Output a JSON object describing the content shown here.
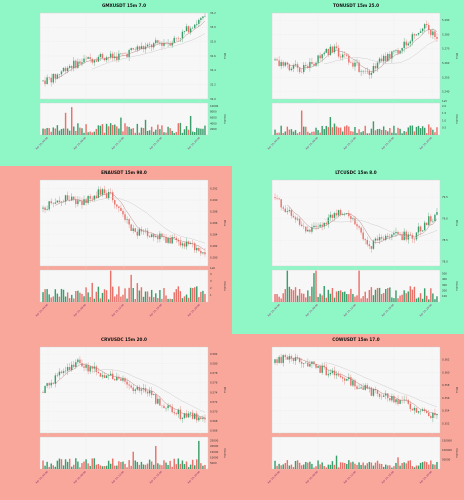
{
  "theme": {
    "green_bg": "#8ff7c6",
    "red_bg": "#f8a79a",
    "up_color": "#3a9e6b",
    "down_color": "#e8716a",
    "ma_fast_color": "#b07a7a",
    "ma_slow_color": "#c8c8c8",
    "plot_bg": "#f7f7f7"
  },
  "labels": {
    "price_axis": "Price",
    "volume_axis": "Volume"
  },
  "chart_data": [
    {
      "type": "candlestick",
      "title": "GMXUSDT 15m 7.0",
      "background": "green",
      "ylabel": "Price",
      "volume_label": "Volume",
      "ylim": [
        32.0,
        33.2
      ],
      "price_ticks": [
        "32.0",
        "32.2",
        "32.4",
        "32.6",
        "32.8",
        "33.0",
        "33.2"
      ],
      "x_ticks": [
        "Apr 10, 04:00",
        "Apr 10, 08:00",
        "Apr 10, 12:00",
        "Apr 10, 16:00",
        "Apr 10, 20:00"
      ],
      "vol_ticks": [
        "2000",
        "4000",
        "6000",
        "8000",
        "10000"
      ],
      "vol_max": 11000,
      "trend": [
        32.25,
        32.3,
        32.45,
        32.5,
        32.55,
        32.6,
        32.58,
        32.62,
        32.7,
        32.72,
        32.78,
        32.8,
        32.9,
        33.05,
        33.12
      ],
      "vol_base": 2200,
      "seed": 7
    },
    {
      "type": "candlestick",
      "title": "TONUSDT 15m 25.0",
      "background": "green",
      "ylabel": "Price",
      "volume_label": "Volume",
      "ylim": [
        5.235,
        5.295
      ],
      "price_ticks": [
        "5.240",
        "5.250",
        "5.260",
        "5.270",
        "5.280",
        "5.290"
      ],
      "x_ticks": [
        "Apr 10, 04:00",
        "Apr 10, 08:00",
        "Apr 10, 12:00",
        "Apr 10, 16:00",
        "Apr 10, 20:00"
      ],
      "vol_ticks": [
        "0.5",
        "1.0",
        "1.5",
        "2.0"
      ],
      "vol_max": 2.2,
      "vol_multiplier": "1e5",
      "trend": [
        5.262,
        5.258,
        5.256,
        5.258,
        5.266,
        5.27,
        5.264,
        5.258,
        5.252,
        5.262,
        5.266,
        5.272,
        5.278,
        5.285,
        5.276
      ],
      "vol_base": 0.35,
      "seed": 25
    },
    {
      "type": "candlestick",
      "title": "ENAUSDT 15m 98.0",
      "background": "red",
      "ylabel": "Price",
      "volume_label": "Volume",
      "ylim": [
        0.2785,
        0.2935
      ],
      "price_ticks": [
        "0.280",
        "0.282",
        "0.284",
        "0.286",
        "0.288",
        "0.290",
        "0.292"
      ],
      "x_ticks": [
        "Apr 10, 04:00",
        "Apr 10, 08:00",
        "Apr 10, 12:00",
        "Apr 10, 16:00",
        "Apr 10, 20:00"
      ],
      "vol_ticks": [
        "1",
        "2",
        "3",
        "4"
      ],
      "vol_max": 4.6,
      "vol_multiplier": "1e6",
      "trend": [
        0.2885,
        0.2895,
        0.2905,
        0.2895,
        0.2905,
        0.2915,
        0.2905,
        0.2865,
        0.2845,
        0.2842,
        0.2838,
        0.283,
        0.2823,
        0.2818,
        0.281
      ],
      "vol_base": 1.2,
      "seed": 98
    },
    {
      "type": "candlestick",
      "title": "LTCUSDC 15m 8.0",
      "background": "green",
      "ylabel": "Price",
      "volume_label": "Volume",
      "ylim": [
        77.9,
        79.9
      ],
      "price_ticks": [
        "78.0",
        "78.5",
        "79.0",
        "79.5"
      ],
      "x_ticks": [
        "Apr 10, 04:00",
        "Apr 10, 08:00",
        "Apr 10, 12:00",
        "Apr 10, 16:00",
        "Apr 10, 20:00"
      ],
      "vol_ticks": [
        "100",
        "200",
        "300",
        "400",
        "500"
      ],
      "vol_max": 560,
      "trend": [
        79.5,
        79.2,
        78.9,
        78.7,
        78.8,
        79.1,
        79.2,
        78.9,
        78.3,
        78.5,
        78.6,
        78.6,
        78.6,
        78.9,
        79.1
      ],
      "vol_base": 150,
      "seed": 8
    },
    {
      "type": "candlestick",
      "title": "CRVUSDC 15m 20.0",
      "background": "red",
      "ylabel": "Price",
      "volume_label": "Volume",
      "ylim": [
        0.5655,
        0.5835
      ],
      "price_ticks": [
        "0.566",
        "0.568",
        "0.570",
        "0.572",
        "0.574",
        "0.576",
        "0.578",
        "0.580",
        "0.582"
      ],
      "x_ticks": [
        "Apr 10, 04:00",
        "Apr 10, 08:00",
        "Apr 10, 12:00",
        "Apr 10, 16:00",
        "Apr 10, 20:00"
      ],
      "vol_ticks": [
        "5000",
        "10000",
        "15000",
        "20000",
        "25000"
      ],
      "vol_max": 28000,
      "trend": [
        0.574,
        0.577,
        0.579,
        0.58,
        0.579,
        0.578,
        0.577,
        0.576,
        0.575,
        0.574,
        0.572,
        0.571,
        0.569,
        0.569,
        0.568
      ],
      "vol_base": 5000,
      "seed": 20
    },
    {
      "type": "candlestick",
      "title": "COWUSDT 15m 17.0",
      "background": "red",
      "ylabel": "Price",
      "volume_label": "Volume",
      "ylim": [
        0.3505,
        0.364
      ],
      "price_ticks": [
        "0.352",
        "0.354",
        "0.356",
        "0.358",
        "0.360",
        "0.362"
      ],
      "x_ticks": [
        "Apr 10, 04:00",
        "Apr 10, 08:00",
        "Apr 10, 12:00",
        "Apr 10, 16:00",
        "Apr 10, 20:00"
      ],
      "vol_ticks": [
        "50000",
        "100000",
        "150000"
      ],
      "vol_max": 170000,
      "trend": [
        0.3615,
        0.3625,
        0.362,
        0.3612,
        0.3605,
        0.3598,
        0.359,
        0.358,
        0.3572,
        0.3565,
        0.356,
        0.3555,
        0.3545,
        0.3538,
        0.3532
      ],
      "vol_base": 25000,
      "seed": 17
    }
  ]
}
